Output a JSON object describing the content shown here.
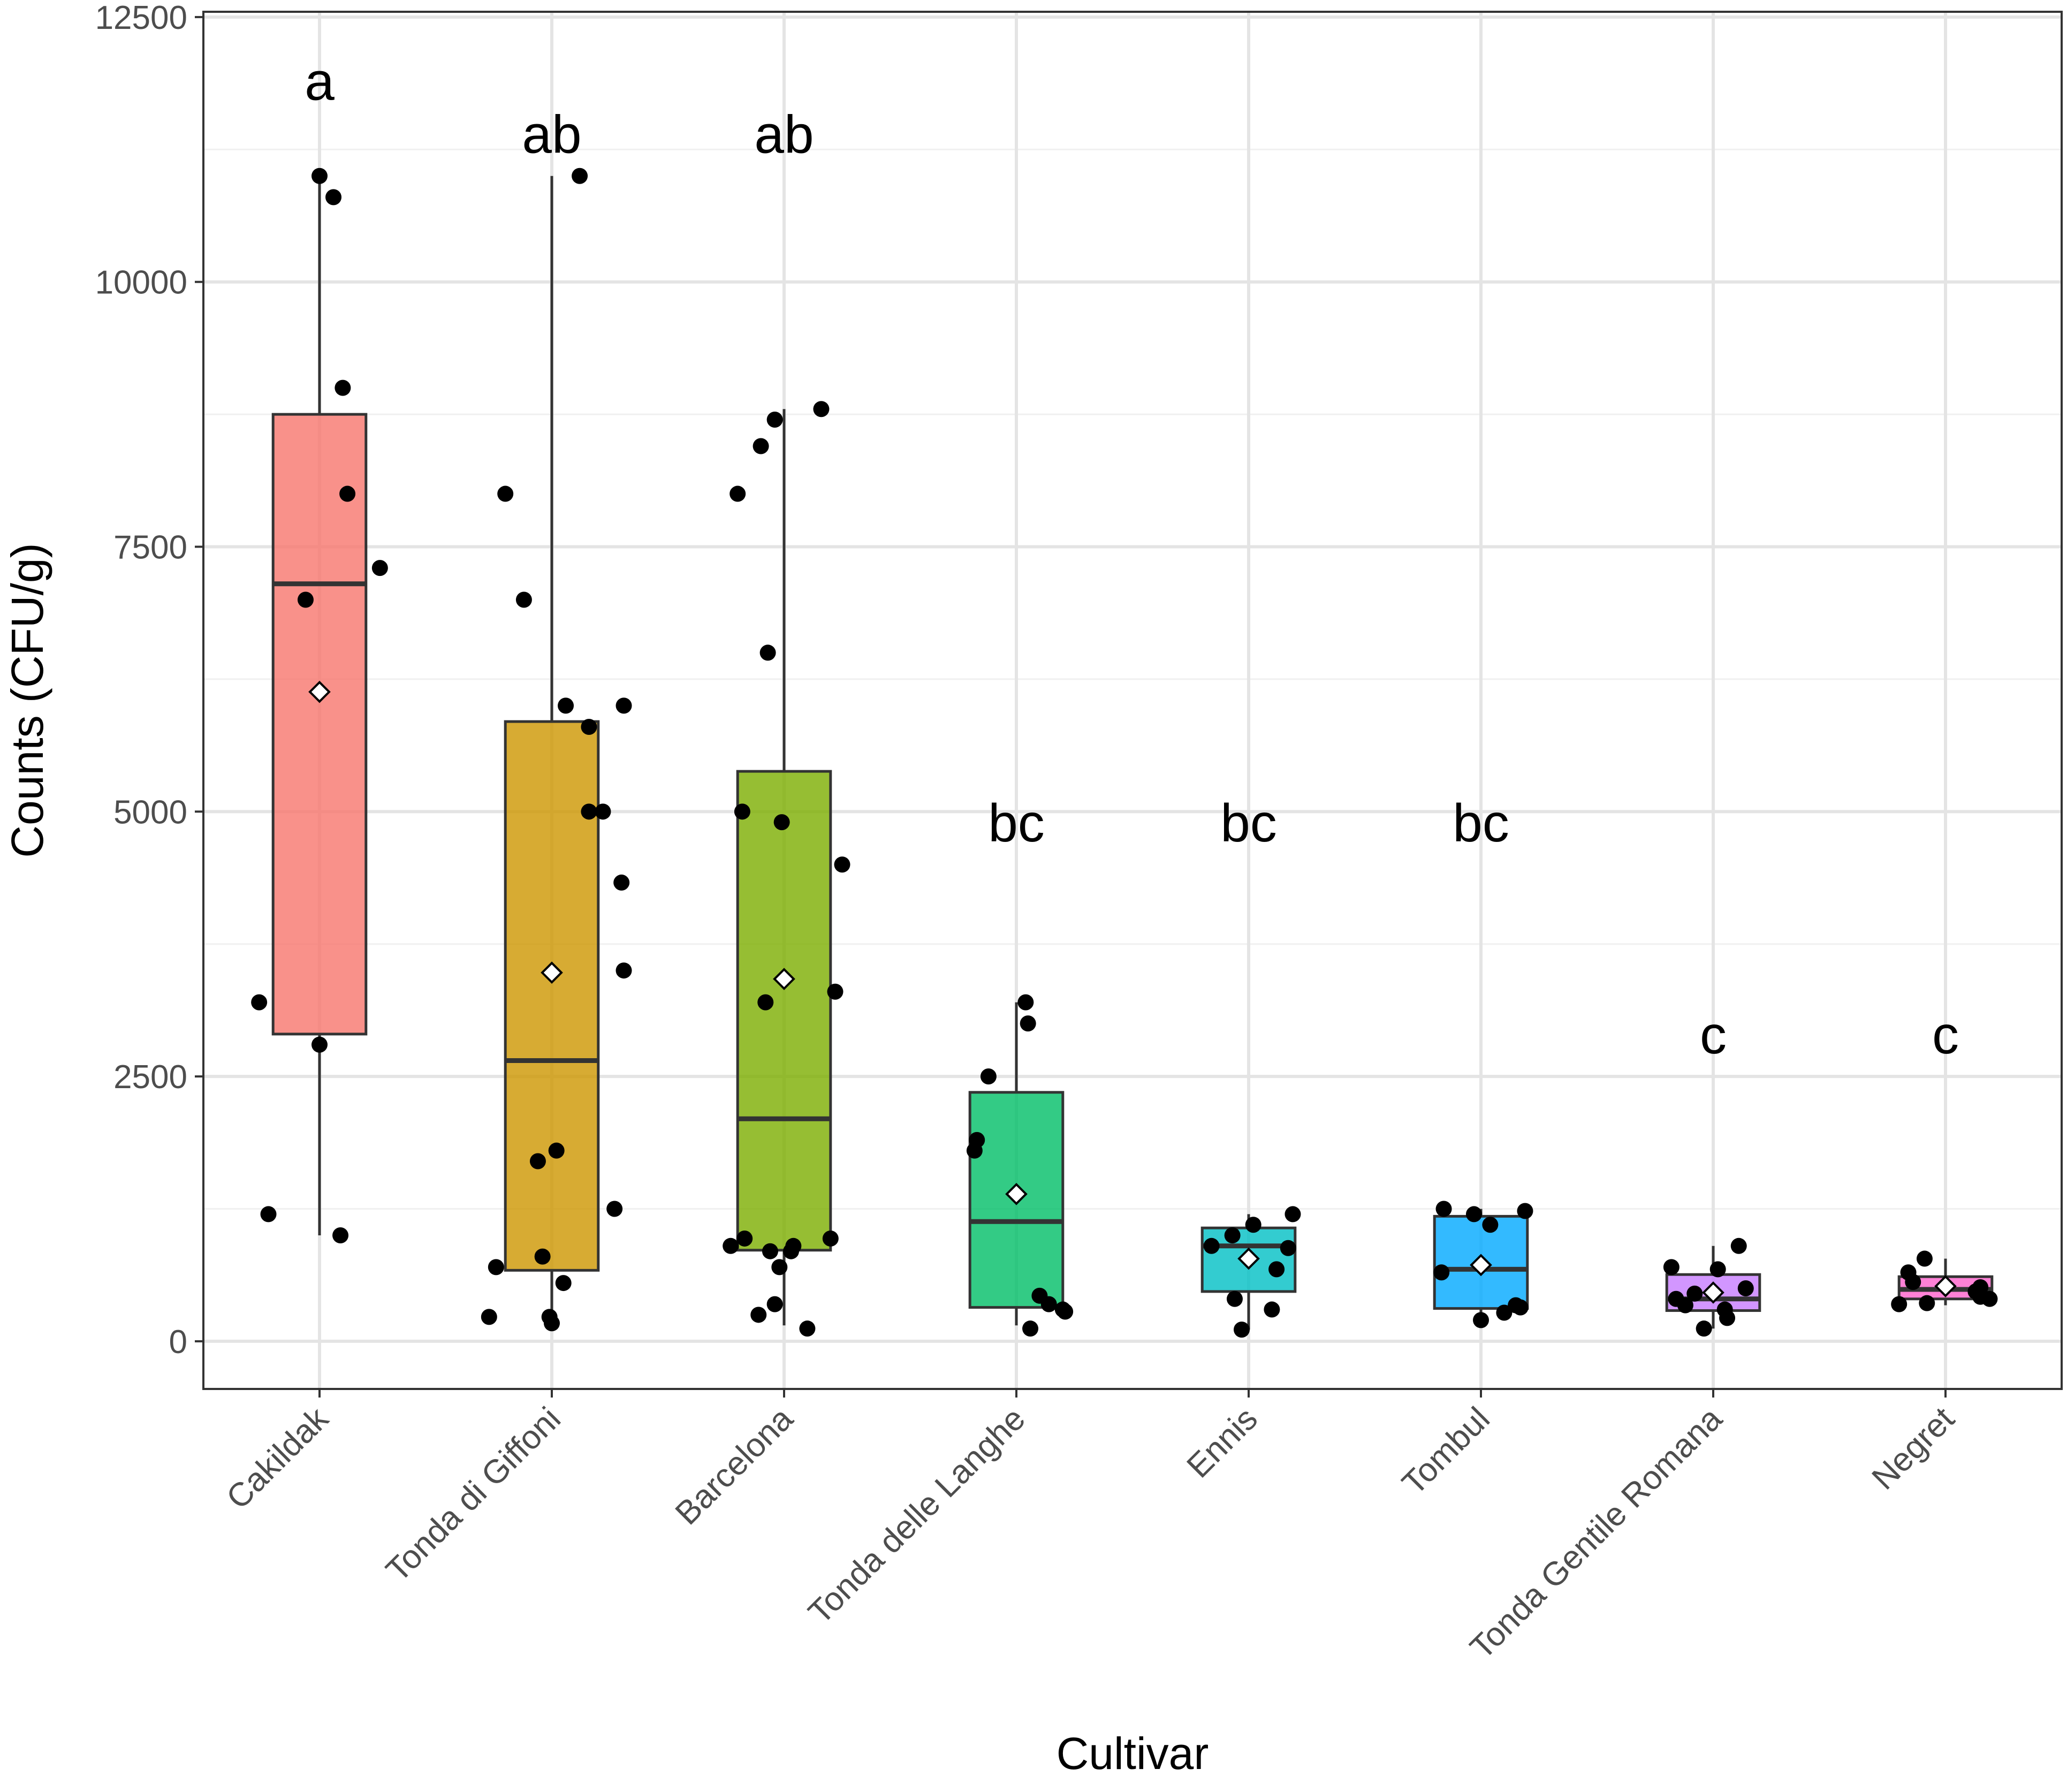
{
  "chart_data": {
    "type": "boxplot",
    "xlabel": "Cultivar",
    "ylabel": "Counts (CFU/g)",
    "ylim": [
      -450,
      12550
    ],
    "yticks": [
      0,
      2500,
      5000,
      7500,
      10000,
      12500
    ],
    "ytick_labels": [
      "0",
      "2500",
      "5000",
      "7500",
      "10000",
      "12500"
    ],
    "grid": true,
    "legend": "none",
    "categories": [
      "Cakildak",
      "Tonda di Giffoni",
      "Barcelona",
      "Tonda delle Langhe",
      "Ennis",
      "Tombul",
      "Tonda Gentile Romana",
      "Negret"
    ],
    "colors": [
      "#F8766D",
      "#CD9600",
      "#7CAE00",
      "#00BE67",
      "#00BFC4",
      "#00A9FF",
      "#C77CFF",
      "#FF61CC"
    ],
    "significance_letters": [
      "a",
      "ab",
      "ab",
      "bc",
      "bc",
      "bc",
      "c",
      "c"
    ],
    "letter_y": [
      11900,
      11400,
      11400,
      4900,
      4900,
      4900,
      2900,
      2900
    ],
    "boxes": [
      {
        "whisker_low": 1000,
        "q1": 2900,
        "median": 7150,
        "q3": 8750,
        "whisker_high": 11000,
        "mean": 6130
      },
      {
        "whisker_low": 200,
        "q1": 670,
        "median": 2650,
        "q3": 5850,
        "whisker_high": 11000,
        "mean": 3480
      },
      {
        "whisker_low": 150,
        "q1": 860,
        "median": 2100,
        "q3": 5380,
        "whisker_high": 8800,
        "mean": 3420
      },
      {
        "whisker_low": 150,
        "q1": 320,
        "median": 1130,
        "q3": 2350,
        "whisker_high": 3200,
        "mean": 1390
      },
      {
        "whisker_low": 110,
        "q1": 470,
        "median": 900,
        "q3": 1070,
        "whisker_high": 1200,
        "mean": 780
      },
      {
        "whisker_low": 200,
        "q1": 310,
        "median": 680,
        "q3": 1180,
        "whisker_high": 1250,
        "mean": 720
      },
      {
        "whisker_low": 120,
        "q1": 290,
        "median": 400,
        "q3": 630,
        "whisker_high": 900,
        "mean": 460
      },
      {
        "whisker_low": 340,
        "q1": 400,
        "median": 490,
        "q3": 610,
        "whisker_high": 780,
        "mean": 520
      }
    ],
    "points": [
      [
        {
          "jitter": 0.0,
          "value": 11000
        },
        {
          "jitter": 0.06,
          "value": 10800
        },
        {
          "jitter": 0.1,
          "value": 9000
        },
        {
          "jitter": 0.12,
          "value": 8000
        },
        {
          "jitter": 0.26,
          "value": 7300
        },
        {
          "jitter": -0.06,
          "value": 7000
        },
        {
          "jitter": -0.26,
          "value": 3200
        },
        {
          "jitter": 0.0,
          "value": 2800
        },
        {
          "jitter": -0.22,
          "value": 1200
        },
        {
          "jitter": 0.09,
          "value": 1000
        }
      ],
      [
        {
          "jitter": 0.12,
          "value": 11000
        },
        {
          "jitter": -0.2,
          "value": 8000
        },
        {
          "jitter": -0.12,
          "value": 7000
        },
        {
          "jitter": 0.06,
          "value": 6000
        },
        {
          "jitter": 0.31,
          "value": 6000
        },
        {
          "jitter": 0.16,
          "value": 5800
        },
        {
          "jitter": 0.16,
          "value": 5000
        },
        {
          "jitter": 0.22,
          "value": 5000
        },
        {
          "jitter": 0.3,
          "value": 4330
        },
        {
          "jitter": 0.31,
          "value": 3500
        },
        {
          "jitter": 0.02,
          "value": 1800
        },
        {
          "jitter": -0.06,
          "value": 1700
        },
        {
          "jitter": 0.27,
          "value": 1250
        },
        {
          "jitter": -0.04,
          "value": 800
        },
        {
          "jitter": -0.24,
          "value": 700
        },
        {
          "jitter": 0.05,
          "value": 550
        },
        {
          "jitter": -0.27,
          "value": 230
        },
        {
          "jitter": -0.01,
          "value": 230
        },
        {
          "jitter": 0.0,
          "value": 170
        }
      ],
      [
        {
          "jitter": 0.16,
          "value": 8800
        },
        {
          "jitter": -0.04,
          "value": 8700
        },
        {
          "jitter": -0.1,
          "value": 8450
        },
        {
          "jitter": -0.2,
          "value": 8000
        },
        {
          "jitter": -0.07,
          "value": 6500
        },
        {
          "jitter": -0.18,
          "value": 5000
        },
        {
          "jitter": -0.01,
          "value": 4900
        },
        {
          "jitter": 0.25,
          "value": 4500
        },
        {
          "jitter": 0.22,
          "value": 3300
        },
        {
          "jitter": -0.08,
          "value": 3200
        },
        {
          "jitter": -0.17,
          "value": 970
        },
        {
          "jitter": 0.03,
          "value": 850
        },
        {
          "jitter": 0.2,
          "value": 970
        },
        {
          "jitter": -0.23,
          "value": 900
        },
        {
          "jitter": -0.06,
          "value": 850
        },
        {
          "jitter": 0.04,
          "value": 900
        },
        {
          "jitter": -0.02,
          "value": 700
        },
        {
          "jitter": -0.04,
          "value": 350
        },
        {
          "jitter": -0.11,
          "value": 250
        },
        {
          "jitter": 0.1,
          "value": 120
        }
      ],
      [
        {
          "jitter": 0.04,
          "value": 3200
        },
        {
          "jitter": 0.05,
          "value": 3000
        },
        {
          "jitter": -0.12,
          "value": 2500
        },
        {
          "jitter": -0.17,
          "value": 1900
        },
        {
          "jitter": -0.18,
          "value": 1800
        },
        {
          "jitter": 0.1,
          "value": 430
        },
        {
          "jitter": 0.14,
          "value": 350
        },
        {
          "jitter": 0.2,
          "value": 300
        },
        {
          "jitter": 0.21,
          "value": 280
        },
        {
          "jitter": 0.06,
          "value": 120
        }
      ],
      [
        {
          "jitter": 0.19,
          "value": 1200
        },
        {
          "jitter": 0.02,
          "value": 1100
        },
        {
          "jitter": -0.07,
          "value": 1000
        },
        {
          "jitter": -0.16,
          "value": 900
        },
        {
          "jitter": 0.17,
          "value": 880
        },
        {
          "jitter": 0.12,
          "value": 680
        },
        {
          "jitter": -0.06,
          "value": 400
        },
        {
          "jitter": 0.1,
          "value": 300
        },
        {
          "jitter": -0.03,
          "value": 110
        }
      ],
      [
        {
          "jitter": -0.16,
          "value": 1250
        },
        {
          "jitter": -0.03,
          "value": 1200
        },
        {
          "jitter": 0.19,
          "value": 1230
        },
        {
          "jitter": 0.04,
          "value": 1100
        },
        {
          "jitter": -0.17,
          "value": 650
        },
        {
          "jitter": 0.15,
          "value": 340
        },
        {
          "jitter": 0.17,
          "value": 320
        },
        {
          "jitter": 0.1,
          "value": 270
        },
        {
          "jitter": 0.0,
          "value": 200
        }
      ],
      [
        {
          "jitter": 0.11,
          "value": 900
        },
        {
          "jitter": -0.18,
          "value": 700
        },
        {
          "jitter": 0.02,
          "value": 680
        },
        {
          "jitter": 0.14,
          "value": 500
        },
        {
          "jitter": -0.08,
          "value": 450
        },
        {
          "jitter": -0.16,
          "value": 400
        },
        {
          "jitter": -0.12,
          "value": 340
        },
        {
          "jitter": 0.05,
          "value": 300
        },
        {
          "jitter": 0.06,
          "value": 220
        },
        {
          "jitter": -0.04,
          "value": 120
        }
      ],
      [
        {
          "jitter": -0.09,
          "value": 780
        },
        {
          "jitter": -0.16,
          "value": 650
        },
        {
          "jitter": -0.14,
          "value": 560
        },
        {
          "jitter": 0.15,
          "value": 510
        },
        {
          "jitter": 0.13,
          "value": 470
        },
        {
          "jitter": 0.15,
          "value": 420
        },
        {
          "jitter": 0.19,
          "value": 400
        },
        {
          "jitter": -0.08,
          "value": 360
        },
        {
          "jitter": -0.2,
          "value": 350
        }
      ]
    ]
  }
}
